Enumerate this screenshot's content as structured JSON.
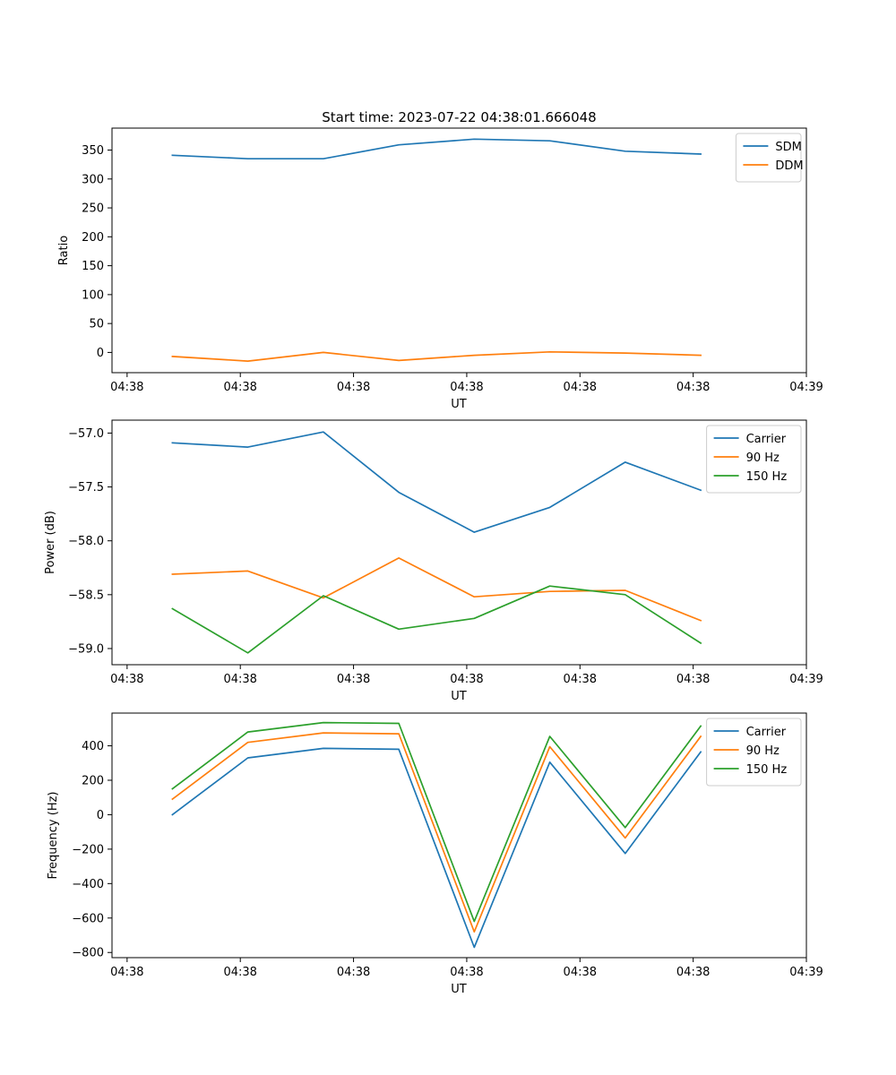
{
  "figure": {
    "title": "Start time: 2023-07-22 04:38:01.666048"
  },
  "chart_data": [
    {
      "type": "line",
      "title": "Start time: 2023-07-22 04:38:01.666048",
      "xlabel": "UT",
      "ylabel": "Ratio",
      "x": [
        1,
        2,
        3,
        4,
        5,
        6,
        7,
        8
      ],
      "xlim": [
        0.2,
        9.4
      ],
      "x_ticks": [
        0.4,
        1.9,
        3.4,
        4.9,
        6.4,
        7.9,
        9.4
      ],
      "x_tick_labels": [
        "04:38",
        "04:38",
        "04:38",
        "04:38",
        "04:38",
        "04:38",
        "04:39"
      ],
      "ylim": [
        -35,
        388
      ],
      "y_ticks": [
        0,
        50,
        100,
        150,
        200,
        250,
        300,
        350
      ],
      "y_tick_labels": [
        "0",
        "50",
        "100",
        "150",
        "200",
        "250",
        "300",
        "350"
      ],
      "legend": "top-right",
      "grid": false,
      "series": [
        {
          "name": "SDM",
          "color": "#1f77b4",
          "values": [
            341,
            335,
            335,
            359,
            369,
            366,
            348,
            343
          ]
        },
        {
          "name": "DDM",
          "color": "#ff7f0e",
          "values": [
            -7,
            -15,
            0,
            -14,
            -5,
            1,
            -1,
            -5
          ]
        }
      ]
    },
    {
      "type": "line",
      "title": "",
      "xlabel": "UT",
      "ylabel": "Power (dB)",
      "x": [
        1,
        2,
        3,
        4,
        5,
        6,
        7,
        8
      ],
      "xlim": [
        0.2,
        9.4
      ],
      "x_ticks": [
        0.4,
        1.9,
        3.4,
        4.9,
        6.4,
        7.9,
        9.4
      ],
      "x_tick_labels": [
        "04:38",
        "04:38",
        "04:38",
        "04:38",
        "04:38",
        "04:38",
        "04:39"
      ],
      "ylim": [
        -59.15,
        -56.88
      ],
      "y_ticks": [
        -57.0,
        -57.5,
        -58.0,
        -58.5,
        -59.0
      ],
      "y_tick_labels": [
        "−57.0",
        "−57.5",
        "−58.0",
        "−58.5",
        "−59.0"
      ],
      "legend": "top-right",
      "grid": false,
      "series": [
        {
          "name": "Carrier",
          "color": "#1f77b4",
          "values": [
            -57.09,
            -57.13,
            -56.99,
            -57.55,
            -57.92,
            -57.69,
            -57.27,
            -57.53
          ]
        },
        {
          "name": "90 Hz",
          "color": "#ff7f0e",
          "values": [
            -58.31,
            -58.28,
            -58.53,
            -58.16,
            -58.52,
            -58.47,
            -58.46,
            -58.74
          ]
        },
        {
          "name": "150 Hz",
          "color": "#2ca02c",
          "values": [
            -58.63,
            -59.04,
            -58.51,
            -58.82,
            -58.72,
            -58.42,
            -58.5,
            -58.95
          ]
        }
      ]
    },
    {
      "type": "line",
      "title": "",
      "xlabel": "UT",
      "ylabel": "Frequency (Hz)",
      "x": [
        1,
        2,
        3,
        4,
        5,
        6,
        7,
        8
      ],
      "xlim": [
        0.2,
        9.4
      ],
      "x_ticks": [
        0.4,
        1.9,
        3.4,
        4.9,
        6.4,
        7.9,
        9.4
      ],
      "x_tick_labels": [
        "04:38",
        "04:38",
        "04:38",
        "04:38",
        "04:38",
        "04:38",
        "04:39"
      ],
      "ylim": [
        -830,
        590
      ],
      "y_ticks": [
        -800,
        -600,
        -400,
        -200,
        0,
        200,
        400
      ],
      "y_tick_labels": [
        "−800",
        "−600",
        "−400",
        "−200",
        "0",
        "200",
        "400"
      ],
      "legend": "top-right",
      "grid": false,
      "series": [
        {
          "name": "Carrier",
          "color": "#1f77b4",
          "values": [
            0,
            330,
            385,
            380,
            -770,
            305,
            -225,
            365
          ]
        },
        {
          "name": "90 Hz",
          "color": "#ff7f0e",
          "values": [
            90,
            420,
            475,
            470,
            -680,
            395,
            -135,
            455
          ]
        },
        {
          "name": "150 Hz",
          "color": "#2ca02c",
          "values": [
            150,
            480,
            535,
            530,
            -620,
            455,
            -75,
            515
          ]
        }
      ]
    }
  ]
}
